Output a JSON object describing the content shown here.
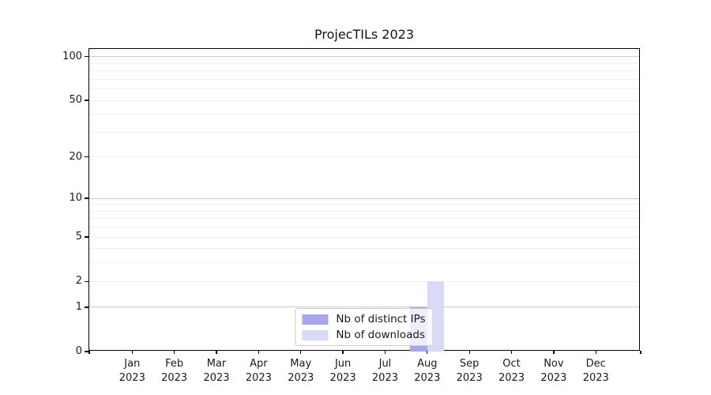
{
  "chart_data": {
    "type": "bar",
    "title": "ProjecTILs 2023",
    "categories": [
      "Jan 2023",
      "Feb 2023",
      "Mar 2023",
      "Apr 2023",
      "May 2023",
      "Jun 2023",
      "Jul 2023",
      "Aug 2023",
      "Sep 2023",
      "Oct 2023",
      "Nov 2023",
      "Dec 2023"
    ],
    "series": [
      {
        "name": "Nb of distinct IPs",
        "color": "#a7a7ed",
        "values": [
          0,
          0,
          0,
          0,
          0,
          0,
          0,
          1,
          0,
          0,
          0,
          0
        ]
      },
      {
        "name": "Nb of downloads",
        "color": "#d9d9f8",
        "values": [
          0,
          0,
          0,
          0,
          0,
          0,
          0,
          2,
          0,
          0,
          0,
          0
        ]
      }
    ],
    "y_scale": "log1p",
    "ylim": [
      0,
      113
    ],
    "y_ticks": [
      0,
      1,
      2,
      5,
      10,
      20,
      50,
      100
    ],
    "y_major_gridlines": [
      1,
      10,
      100
    ],
    "y_minor_gridlines": [
      2,
      3,
      4,
      5,
      6,
      7,
      8,
      9,
      20,
      30,
      40,
      50,
      60,
      70,
      80,
      90
    ],
    "grid": true,
    "xlabel": "",
    "ylabel": "",
    "legend_position": "lower center",
    "colors": {
      "spine": "#000000",
      "major_grid": "#cbcbcb",
      "minor_grid": "#efefef",
      "legend_border": "#cccccc"
    }
  }
}
